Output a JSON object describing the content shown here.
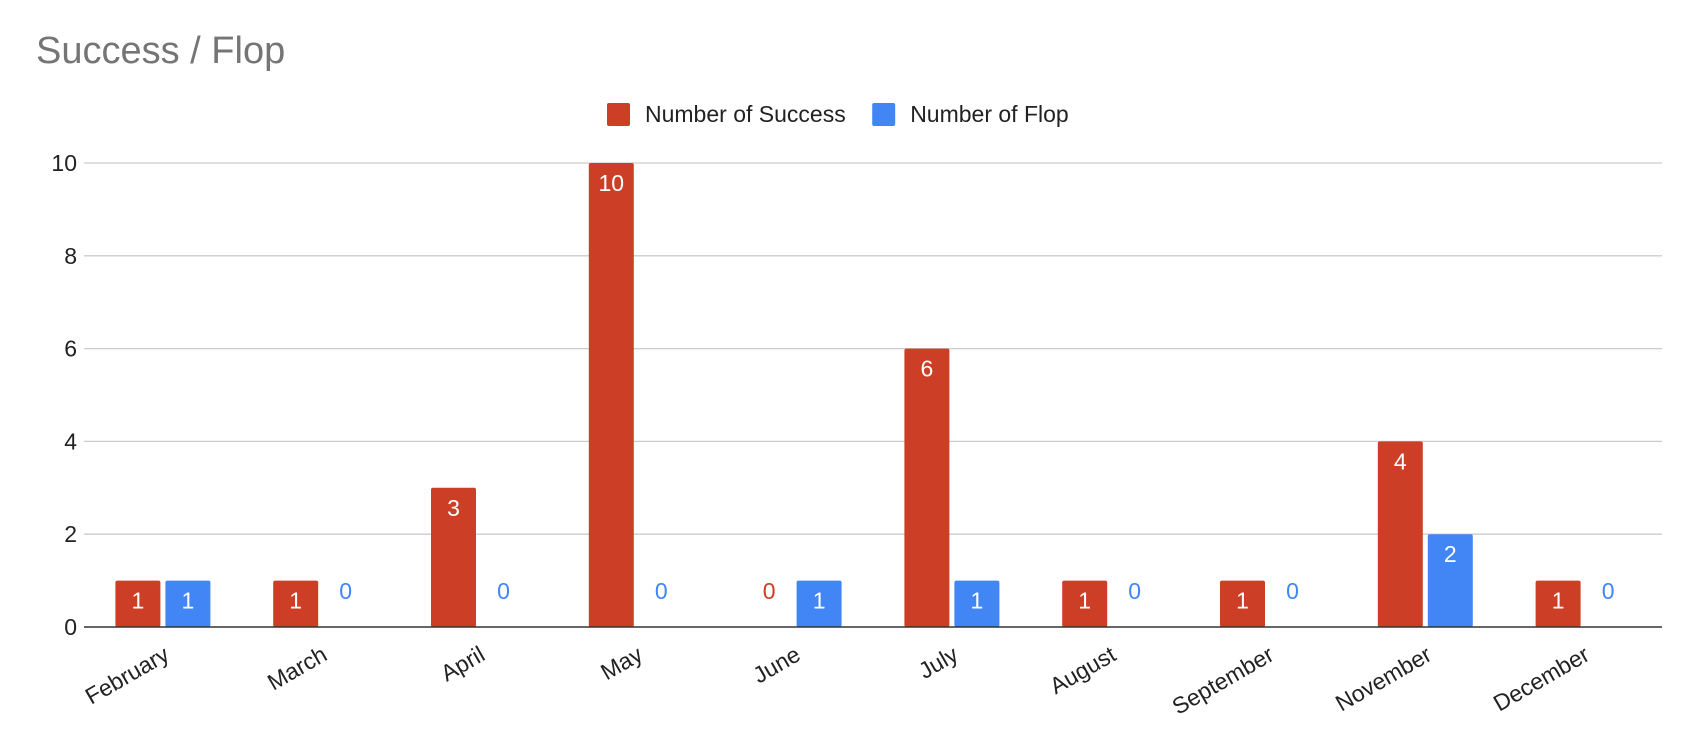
{
  "chart_data": {
    "type": "bar",
    "title": "Success / Flop",
    "xlabel": "",
    "ylabel": "",
    "ylim": [
      0,
      10
    ],
    "yticks": [
      0,
      2,
      4,
      6,
      8,
      10
    ],
    "grid": true,
    "legend_position": "top-center",
    "categories": [
      "February",
      "March",
      "April",
      "May",
      "June",
      "July",
      "August",
      "September",
      "November",
      "December"
    ],
    "series": [
      {
        "name": "Number of Success",
        "color": "#cc3e25",
        "values": [
          1,
          1,
          3,
          10,
          0,
          6,
          1,
          1,
          4,
          1
        ]
      },
      {
        "name": "Number of Flop",
        "color": "#4285f4",
        "values": [
          1,
          0,
          0,
          0,
          1,
          1,
          0,
          0,
          2,
          0
        ]
      }
    ]
  }
}
